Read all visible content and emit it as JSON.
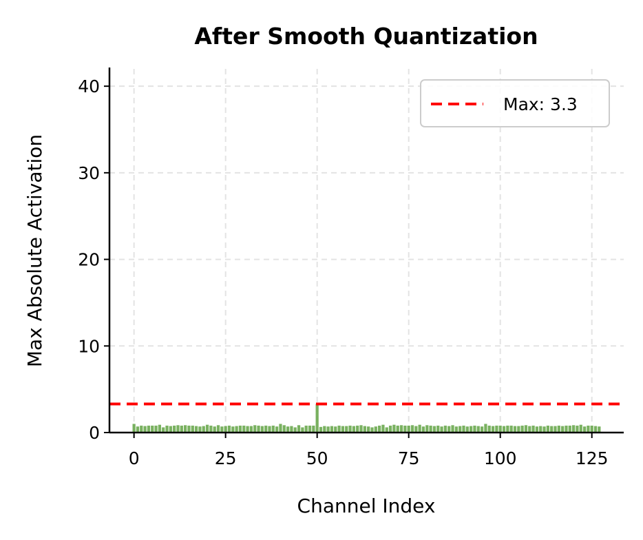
{
  "chart_data": {
    "type": "bar",
    "title": "After Smooth Quantization",
    "xlabel": "Channel Index",
    "ylabel": "Max Absolute Activation",
    "xlim": [
      -6.7,
      133.7
    ],
    "ylim": [
      0,
      42
    ],
    "xticks": [
      0,
      25,
      50,
      75,
      100,
      125
    ],
    "yticks": [
      0,
      10,
      20,
      30,
      40
    ],
    "grid": true,
    "legend_position": "top-right",
    "legend": [
      {
        "label": "Max: 3.3",
        "style": "dashed",
        "color": "#ff0000"
      }
    ],
    "bar_color": "#6aa84f",
    "reference_line": {
      "y": 3.3,
      "color": "#ff0000",
      "style": "dashed"
    },
    "x": [
      0,
      1,
      2,
      3,
      4,
      5,
      6,
      7,
      8,
      9,
      10,
      11,
      12,
      13,
      14,
      15,
      16,
      17,
      18,
      19,
      20,
      21,
      22,
      23,
      24,
      25,
      26,
      27,
      28,
      29,
      30,
      31,
      32,
      33,
      34,
      35,
      36,
      37,
      38,
      39,
      40,
      41,
      42,
      43,
      44,
      45,
      46,
      47,
      48,
      49,
      50,
      51,
      52,
      53,
      54,
      55,
      56,
      57,
      58,
      59,
      60,
      61,
      62,
      63,
      64,
      65,
      66,
      67,
      68,
      69,
      70,
      71,
      72,
      73,
      74,
      75,
      76,
      77,
      78,
      79,
      80,
      81,
      82,
      83,
      84,
      85,
      86,
      87,
      88,
      89,
      90,
      91,
      92,
      93,
      94,
      95,
      96,
      97,
      98,
      99,
      100,
      101,
      102,
      103,
      104,
      105,
      106,
      107,
      108,
      109,
      110,
      111,
      112,
      113,
      114,
      115,
      116,
      117,
      118,
      119,
      120,
      121,
      122,
      123,
      124,
      125,
      126,
      127
    ],
    "values": [
      1.0,
      0.7,
      0.8,
      0.75,
      0.8,
      0.8,
      0.8,
      0.9,
      0.6,
      0.8,
      0.75,
      0.8,
      0.85,
      0.8,
      0.85,
      0.8,
      0.8,
      0.75,
      0.7,
      0.75,
      0.9,
      0.8,
      0.7,
      0.85,
      0.7,
      0.75,
      0.8,
      0.7,
      0.75,
      0.8,
      0.8,
      0.75,
      0.75,
      0.85,
      0.8,
      0.75,
      0.8,
      0.75,
      0.8,
      0.7,
      1.0,
      0.85,
      0.7,
      0.75,
      0.6,
      0.85,
      0.6,
      0.8,
      0.8,
      0.8,
      3.3,
      0.65,
      0.75,
      0.7,
      0.75,
      0.7,
      0.8,
      0.75,
      0.75,
      0.8,
      0.75,
      0.8,
      0.85,
      0.75,
      0.7,
      0.6,
      0.7,
      0.8,
      0.9,
      0.6,
      0.8,
      0.9,
      0.8,
      0.85,
      0.8,
      0.8,
      0.85,
      0.75,
      0.9,
      0.7,
      0.85,
      0.8,
      0.75,
      0.8,
      0.7,
      0.8,
      0.75,
      0.85,
      0.7,
      0.75,
      0.8,
      0.7,
      0.75,
      0.8,
      0.75,
      0.7,
      1.0,
      0.8,
      0.75,
      0.8,
      0.8,
      0.75,
      0.8,
      0.8,
      0.75,
      0.75,
      0.8,
      0.85,
      0.75,
      0.8,
      0.7,
      0.75,
      0.7,
      0.8,
      0.75,
      0.75,
      0.8,
      0.75,
      0.8,
      0.8,
      0.85,
      0.8,
      0.9,
      0.7,
      0.8,
      0.8,
      0.75,
      0.7
    ]
  }
}
